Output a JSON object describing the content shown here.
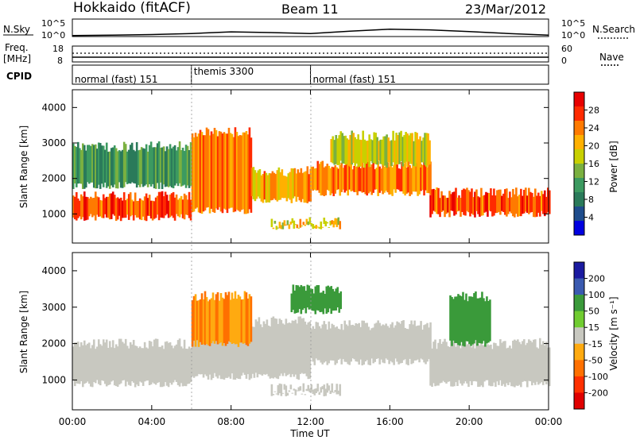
{
  "header": {
    "station": "Hokkaido (fitACF)",
    "beam": "Beam 11",
    "date": "23/Mar/2012"
  },
  "top_panels": {
    "nsky_label": "N.Sky",
    "nsearch_label": "N.Search",
    "noise_ticks": [
      "10^5",
      "10^0"
    ],
    "freq_label": "Freq.",
    "freq_unit": "[MHz]",
    "freq_ticks": [
      "18",
      "8"
    ],
    "nave_label": "Nave",
    "nave_ticks": [
      "60",
      "0"
    ],
    "cpid_label": "CPID",
    "cpid_segments": [
      {
        "label": "normal (fast) 151",
        "start_hour": 0,
        "end_hour": 6
      },
      {
        "label": "themis 3300",
        "start_hour": 6,
        "end_hour": 12
      },
      {
        "label": "normal (fast) 151",
        "start_hour": 12,
        "end_hour": 24
      }
    ]
  },
  "power_panel": {
    "ylabel": "Slant Range [km]",
    "yticks": [
      "1000",
      "2000",
      "3000",
      "4000"
    ],
    "colorbar_label": "Power [dB]",
    "colorbar_ticks": [
      "28",
      "24",
      "20",
      "16",
      "12",
      "8",
      "4"
    ],
    "colors": [
      "#e80000",
      "#ff2a00",
      "#ff7a00",
      "#ffb000",
      "#c8d000",
      "#7ab040",
      "#3c9a60",
      "#2a7a5a",
      "#1e4c8c",
      "#0000e0"
    ]
  },
  "velocity_panel": {
    "ylabel": "Slant Range [km]",
    "yticks": [
      "1000",
      "2000",
      "3000",
      "4000"
    ],
    "colorbar_label": "Velocity [m s⁻¹]",
    "colorbar_ticks": [
      "200",
      "100",
      "50",
      "15",
      "-15",
      "-50",
      "-100",
      "-200"
    ],
    "colors": [
      "#1a1aa0",
      "#3a5ab0",
      "#3a9a3a",
      "#70cc30",
      "#c8c8c0",
      "#ffaa10",
      "#ff7000",
      "#ff3000",
      "#e00000"
    ],
    "ground_scatter_color": "#c8c8c0"
  },
  "xaxis": {
    "label": "Time UT",
    "ticks": [
      "00:00",
      "04:00",
      "08:00",
      "12:00",
      "16:00",
      "20:00",
      "00:00"
    ]
  },
  "chart_data": [
    {
      "type": "line",
      "title": "Hokkaido (fitACF) Beam 11 23/Mar/2012",
      "series": [
        {
          "name": "N.Sky",
          "x_hours": [
            0,
            2,
            4,
            6,
            8,
            10,
            12,
            14,
            16,
            18,
            20,
            22,
            24
          ],
          "values_log10": [
            0.3,
            0.4,
            0.6,
            0.9,
            1.4,
            1.2,
            0.9,
            1.6,
            2.2,
            2.0,
            1.5,
            0.9,
            0.4
          ]
        },
        {
          "name": "N.Search",
          "x_hours": [
            0,
            2,
            4,
            6,
            8,
            10,
            12,
            14,
            16,
            18,
            20,
            22,
            24
          ],
          "values_log10": [
            0.2,
            0.3,
            0.4,
            0.7,
            1.1,
            1.0,
            0.8,
            1.3,
            1.8,
            1.7,
            1.2,
            0.7,
            0.3
          ]
        }
      ],
      "ylim": [
        0,
        5
      ]
    },
    {
      "type": "line",
      "series": [
        {
          "name": "Freq.",
          "x_hours": [
            0,
            6,
            12,
            18,
            24
          ],
          "values": [
            10.5,
            10.5,
            10.5,
            10.5,
            10.5
          ]
        },
        {
          "name": "Nave",
          "x_hours": [
            0,
            6,
            12,
            18,
            24
          ],
          "values": [
            22,
            22,
            22,
            22,
            22
          ]
        }
      ],
      "ylim": [
        8,
        18
      ]
    },
    {
      "type": "heatmap",
      "xlabel": "Time UT",
      "ylabel": "Slant Range [km]",
      "colorbar": "Power [dB]",
      "xlim": [
        0,
        24
      ],
      "ylim": [
        180,
        4500
      ],
      "zlim": [
        0,
        30
      ],
      "bands": [
        {
          "from_hour": 0,
          "to_hour": 6,
          "range_low": 900,
          "range_high": 1500,
          "power": 26
        },
        {
          "from_hour": 6,
          "to_hour": 9,
          "range_low": 1100,
          "range_high": 3300,
          "power": 24
        },
        {
          "from_hour": 9,
          "to_hour": 12,
          "range_low": 1400,
          "range_high": 2200,
          "power": 22
        },
        {
          "from_hour": 10,
          "to_hour": 13.5,
          "range_low": 650,
          "range_high": 760,
          "power": 20
        },
        {
          "from_hour": 12,
          "to_hour": 18,
          "range_low": 1600,
          "range_high": 2400,
          "power": 24
        },
        {
          "from_hour": 18,
          "to_hour": 24,
          "range_low": 1000,
          "range_high": 1600,
          "power": 26
        },
        {
          "from_hour": 0,
          "to_hour": 6,
          "range_low": 1800,
          "range_high": 2900,
          "power": 12
        },
        {
          "from_hour": 13,
          "to_hour": 18,
          "range_low": 2400,
          "range_high": 3200,
          "power": 18
        }
      ]
    },
    {
      "type": "heatmap",
      "xlabel": "Time UT",
      "ylabel": "Slant Range [km]",
      "colorbar": "Velocity [m s⁻¹]",
      "xlim": [
        0,
        24
      ],
      "ylim": [
        180,
        4500
      ],
      "zlim": [
        -200,
        200
      ],
      "bands": [
        {
          "from_hour": 0,
          "to_hour": 6,
          "range_low": 900,
          "range_high": 2000,
          "velocity": 0
        },
        {
          "from_hour": 6,
          "to_hour": 12,
          "range_low": 1100,
          "range_high": 2600,
          "velocity": 0
        },
        {
          "from_hour": 10,
          "to_hour": 13.5,
          "range_low": 650,
          "range_high": 760,
          "velocity": 0
        },
        {
          "from_hour": 12,
          "to_hour": 18,
          "range_low": 1500,
          "range_high": 2500,
          "velocity": 0
        },
        {
          "from_hour": 18,
          "to_hour": 24,
          "range_low": 900,
          "range_high": 2000,
          "velocity": 0
        },
        {
          "from_hour": 6,
          "to_hour": 9,
          "range_low": 2000,
          "range_high": 3300,
          "velocity": -50
        },
        {
          "from_hour": 11,
          "to_hour": 13.5,
          "range_low": 2900,
          "range_high": 3500,
          "velocity": 60
        },
        {
          "from_hour": 19,
          "to_hour": 21,
          "range_low": 2000,
          "range_high": 3300,
          "velocity": 60
        }
      ]
    }
  ]
}
